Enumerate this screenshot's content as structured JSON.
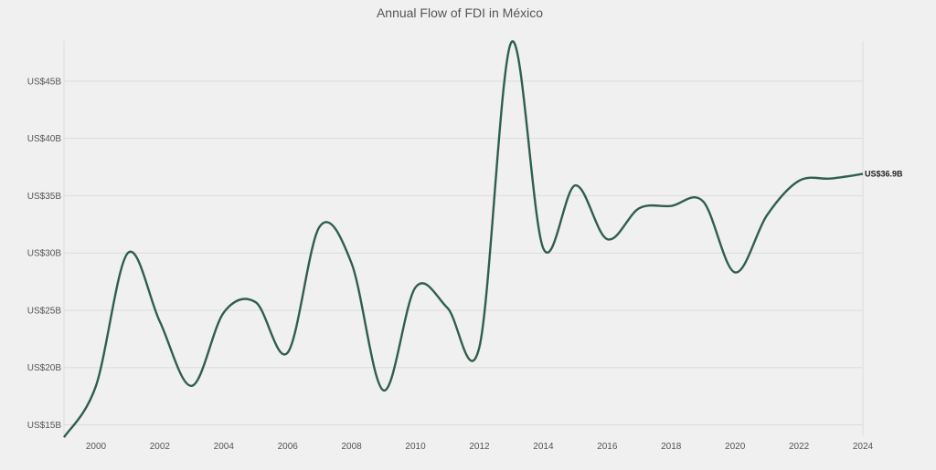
{
  "chart_data": {
    "type": "line",
    "title": "Annual Flow of FDI in México",
    "xlabel": "",
    "ylabel": "",
    "x": [
      1999,
      2000,
      2001,
      2002,
      2003,
      2004,
      2005,
      2006,
      2007,
      2008,
      2009,
      2010,
      2011,
      2012,
      2013,
      2014,
      2015,
      2016,
      2017,
      2018,
      2019,
      2020,
      2021,
      2022,
      2023,
      2024
    ],
    "series": [
      {
        "name": "",
        "values": [
          13.9,
          18.4,
          30.0,
          24.0,
          18.4,
          24.8,
          25.7,
          21.3,
          32.3,
          29.1,
          18.0,
          27.0,
          25.2,
          21.8,
          48.4,
          30.4,
          35.9,
          31.2,
          33.9,
          34.1,
          34.5,
          28.3,
          33.3,
          36.3,
          36.5,
          36.9
        ],
        "color": "#2f5f4a"
      }
    ],
    "end_label": "US$36.9B",
    "xticks": [
      "2000",
      "2002",
      "2004",
      "2006",
      "2008",
      "2010",
      "2012",
      "2014",
      "2016",
      "2018",
      "2020",
      "2022",
      "2024"
    ],
    "xtick_values": [
      2000,
      2002,
      2004,
      2006,
      2008,
      2010,
      2012,
      2014,
      2016,
      2018,
      2020,
      2022,
      2024
    ],
    "yticks": [
      "US$15B",
      "US$20B",
      "US$25B",
      "US$30B",
      "US$35B",
      "US$40B",
      "US$45B"
    ],
    "ytick_values": [
      15,
      20,
      25,
      30,
      35,
      40,
      45
    ],
    "xlim": [
      1999,
      2024
    ],
    "ylim": [
      14,
      48.5
    ],
    "grid": true,
    "legend": "none",
    "background": "#f0f0f0"
  }
}
